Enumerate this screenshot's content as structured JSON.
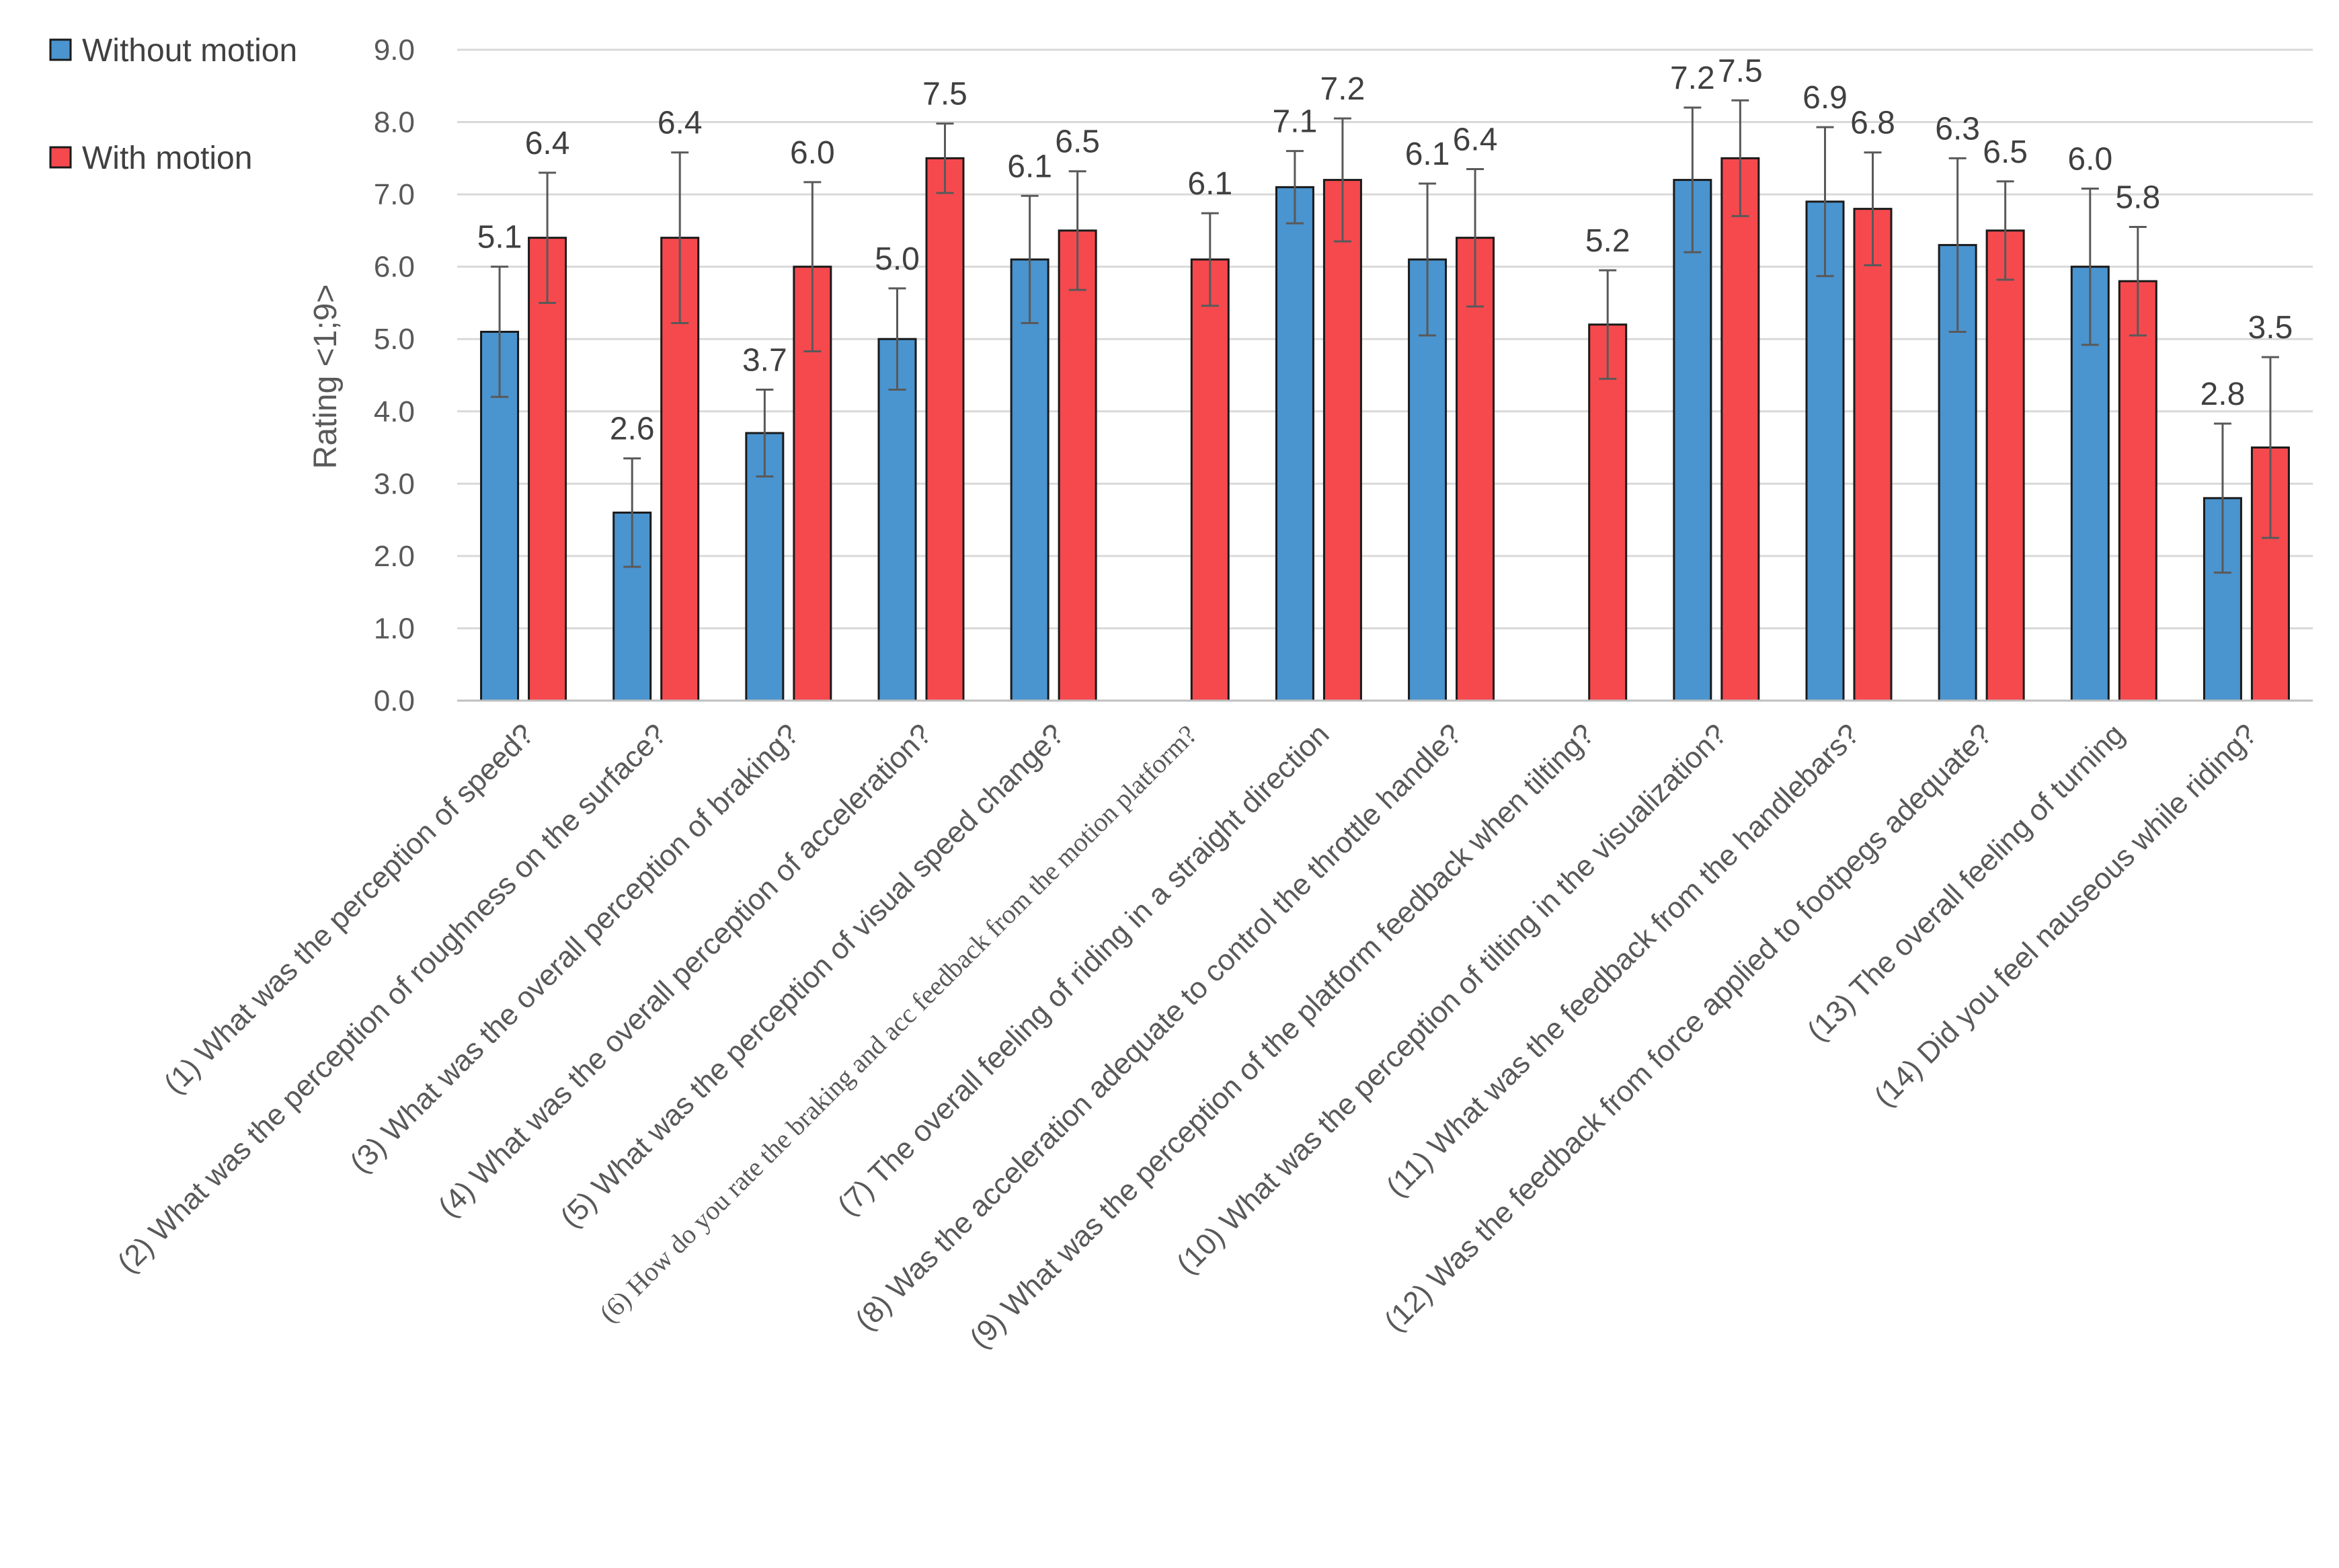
{
  "chart_data": {
    "type": "bar",
    "title": "",
    "xlabel": "",
    "ylabel": "Rating <1;9>",
    "ylim": [
      0,
      9
    ],
    "yticks": [
      "0.0",
      "1.0",
      "2.0",
      "3.0",
      "4.0",
      "5.0",
      "6.0",
      "7.0",
      "8.0",
      "9.0"
    ],
    "grid": true,
    "legend_position": "top-left",
    "categories": [
      "(1) What was the perception of speed?",
      "(2) What was the perception of roughness on the surface?",
      "(3) What was the overall perception of braking?",
      "(4) What was the overall perception of acceleration?",
      "(5) What was the perception of visual speed change?",
      "(6) How do you rate the braking and acc feedback from the motion platform?",
      "(7) The overall feeling of riding in a straight direction",
      "(8) Was the acceleration adequate to control the throttle handle?",
      "(9) What was the perception of the platform feedback when tilting?",
      "(10) What was the perception of tilting in the visualization?",
      "(11) What was the feedback from the handlebars?",
      "(12) Was the feedback from force applied to footpegs adequate?",
      "(13) The overall feeling of turning",
      "(14) Did you feel nauseous while riding?"
    ],
    "series": [
      {
        "name": "Without motion",
        "color": "#4a94cf",
        "values": [
          5.1,
          2.6,
          3.7,
          5.0,
          6.1,
          null,
          7.1,
          6.1,
          null,
          7.2,
          6.9,
          6.3,
          6.0,
          2.8
        ],
        "labels": [
          "5.1",
          "2.6",
          "3.7",
          "5.0",
          "6.1",
          "",
          "7.1",
          "6.1",
          "",
          "7.2",
          "6.9",
          "6.3",
          "6.0",
          "2.8"
        ],
        "error": [
          0.9,
          0.75,
          0.6,
          0.7,
          0.88,
          null,
          0.5,
          1.05,
          null,
          1.0,
          1.03,
          1.2,
          1.08,
          1.03
        ]
      },
      {
        "name": "With motion",
        "color": "#f5494e",
        "values": [
          6.4,
          6.4,
          6.0,
          7.5,
          6.5,
          6.1,
          7.2,
          6.4,
          5.2,
          7.5,
          6.8,
          6.5,
          5.8,
          3.5
        ],
        "labels": [
          "6.4",
          "6.4",
          "6.0",
          "7.5",
          "6.5",
          "6.1",
          "7.2",
          "6.4",
          "5.2",
          "7.5",
          "6.8",
          "6.5",
          "5.8",
          "3.5"
        ],
        "error": [
          0.9,
          1.18,
          1.17,
          0.48,
          0.82,
          0.64,
          0.85,
          0.95,
          0.75,
          0.8,
          0.78,
          0.68,
          0.75,
          1.25
        ]
      }
    ]
  }
}
